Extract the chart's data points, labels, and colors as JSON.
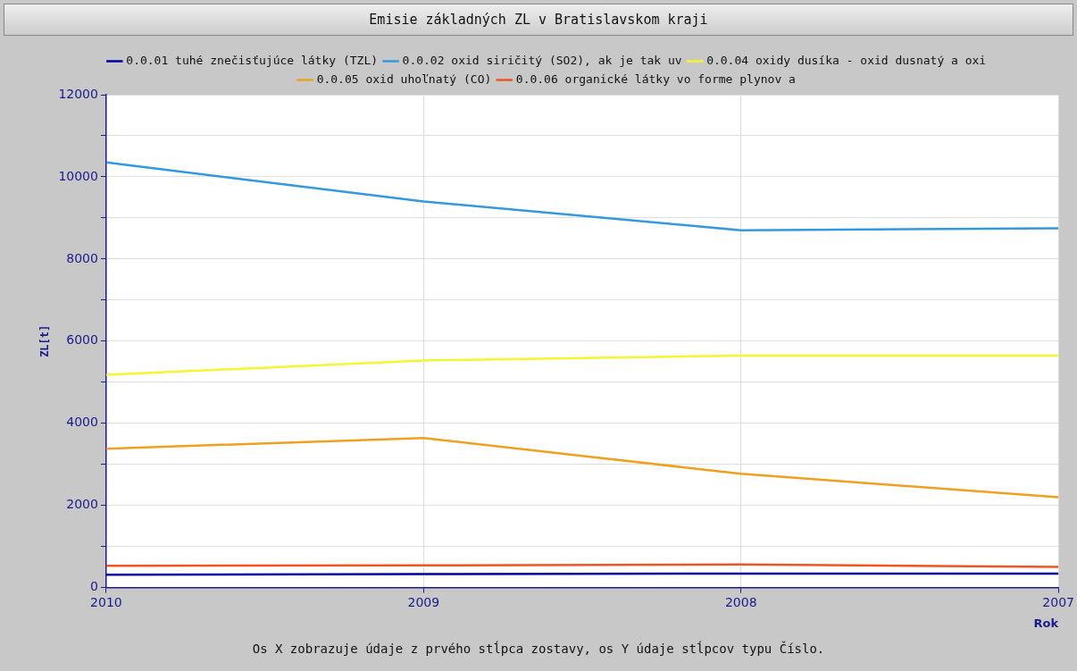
{
  "chart_data": {
    "type": "line",
    "title": "Emisie základných ZL v Bratislavskom kraji",
    "xlabel": "Rok",
    "ylabel": "ZL[t]",
    "annotations": [
      "Os X zobrazuje údaje z prvého stĺpca zostavy, os Y údaje stĺpcov typu Číslo."
    ],
    "categories": [
      "2010",
      "2009",
      "2008",
      "2007"
    ],
    "series": [
      {
        "name": "0.0.01 tuhé znečisťujúce látky (TZL)",
        "color": "#0000a0",
        "values": [
          310,
          330,
          340,
          340
        ]
      },
      {
        "name": "0.0.02 oxid siričitý (SO2), ak je tak uv",
        "color": "#3399dd",
        "values": [
          10350,
          9400,
          8700,
          8750
        ]
      },
      {
        "name": "0.0.04 oxidy dusíka - oxid dusnatý a oxi",
        "color": "#f5f530",
        "values": [
          5180,
          5530,
          5650,
          5650
        ]
      },
      {
        "name": "0.0.05 oxid uhoľnatý (CO)",
        "color": "#f0a020",
        "values": [
          3380,
          3640,
          2770,
          2200
        ]
      },
      {
        "name": "0.0.06 organické látky vo forme plynov a",
        "color": "#ee5522",
        "values": [
          530,
          540,
          560,
          500
        ]
      }
    ],
    "ylim": [
      0,
      12000
    ],
    "yticks": [
      0,
      {
        "value": 1000,
        "label": null
      },
      2000,
      {
        "value": 3000,
        "label": null
      },
      4000,
      {
        "value": 5000,
        "label": null
      },
      6000,
      {
        "value": 7000,
        "label": null
      },
      8000,
      {
        "value": 9000,
        "label": null
      },
      10000,
      {
        "value": 11000,
        "label": null
      },
      12000
    ],
    "grid": true,
    "legend": "top"
  }
}
